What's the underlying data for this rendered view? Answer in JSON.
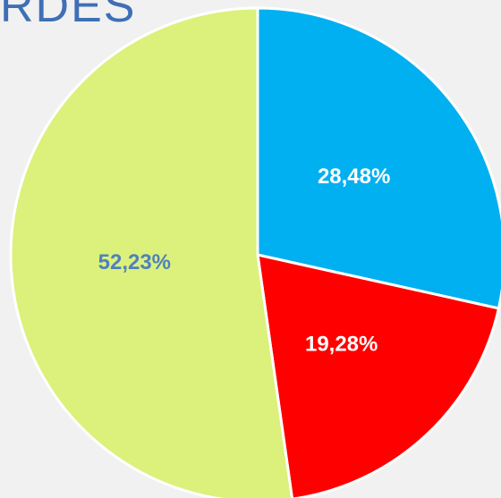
{
  "chart_data": {
    "type": "pie",
    "title": "RDES",
    "categories": [
      null,
      null,
      null
    ],
    "values": [
      28.48,
      19.28,
      52.23
    ],
    "value_labels": [
      "28,48%",
      "19,28%",
      "52,23%"
    ],
    "colors": [
      "#00b0f0",
      "#ff0000",
      "#dbf17b"
    ],
    "label_colors": [
      "#ffffff",
      "#ffffff",
      "#4f81bd"
    ]
  }
}
